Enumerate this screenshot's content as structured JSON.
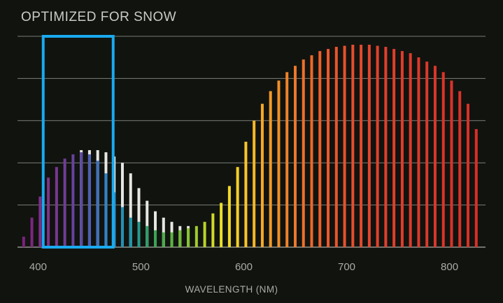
{
  "chart_data": {
    "type": "bar",
    "title": "OPTIMIZED FOR SNOW",
    "xlabel": "WAVELENGTH (NM)",
    "ylabel": "",
    "xlim": [
      380,
      835
    ],
    "ylim": [
      0,
      1
    ],
    "x_ticks": [
      400,
      500,
      600,
      700,
      800
    ],
    "grid": true,
    "highlight_range": [
      405,
      473
    ],
    "highlight_color": "#19aaf0",
    "reference_color": "#e6e6e2",
    "series": [
      {
        "name": "",
        "x": [
          386,
          394,
          402,
          410,
          418,
          426,
          434,
          442,
          450,
          458,
          466,
          474,
          482,
          490,
          498,
          506,
          514,
          522,
          530,
          538,
          546,
          554,
          562,
          570,
          578,
          586,
          594,
          602,
          610,
          618,
          626,
          634,
          642,
          650,
          658,
          666,
          674,
          682,
          690,
          698,
          706,
          714,
          722,
          730,
          738,
          746,
          754,
          762,
          770,
          778,
          786,
          794,
          802,
          810,
          818,
          826
        ],
        "transmission": [
          0.05,
          0.14,
          0.24,
          0.33,
          0.38,
          0.42,
          0.44,
          0.45,
          0.44,
          0.41,
          0.35,
          0.26,
          0.19,
          0.14,
          0.12,
          0.1,
          0.08,
          0.07,
          0.07,
          0.08,
          0.09,
          0.1,
          0.12,
          0.16,
          0.21,
          0.29,
          0.38,
          0.5,
          0.6,
          0.68,
          0.74,
          0.79,
          0.83,
          0.86,
          0.89,
          0.91,
          0.93,
          0.94,
          0.95,
          0.955,
          0.96,
          0.96,
          0.96,
          0.955,
          0.95,
          0.94,
          0.93,
          0.92,
          0.9,
          0.88,
          0.86,
          0.83,
          0.79,
          0.74,
          0.68,
          0.56
        ],
        "reference": [
          0.05,
          0.14,
          0.24,
          0.33,
          0.38,
          0.42,
          0.44,
          0.46,
          0.46,
          0.46,
          0.45,
          0.43,
          0.4,
          0.35,
          0.28,
          0.22,
          0.17,
          0.14,
          0.12,
          0.1,
          0.1,
          0.1,
          0.12,
          0.16,
          0.21,
          0.29,
          0.38,
          0.5,
          0.6,
          0.68,
          0.74,
          0.79,
          0.83,
          0.86,
          0.89,
          0.91,
          0.93,
          0.94,
          0.95,
          0.955,
          0.96,
          0.96,
          0.96,
          0.955,
          0.95,
          0.94,
          0.93,
          0.92,
          0.9,
          0.88,
          0.86,
          0.83,
          0.79,
          0.74,
          0.68,
          0.56
        ]
      }
    ]
  }
}
